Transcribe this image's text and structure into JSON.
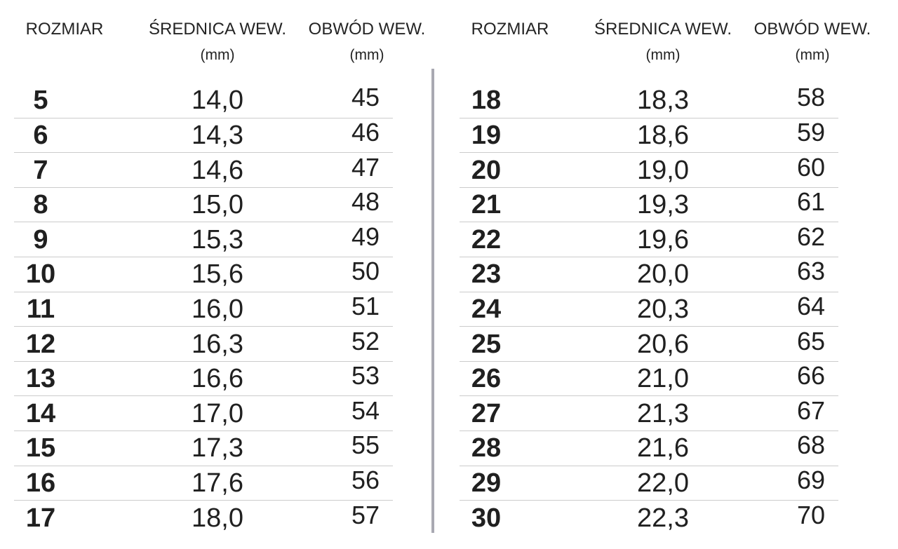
{
  "header": {
    "columns": [
      {
        "title": "ROZMIAR",
        "unit": ""
      },
      {
        "title": "ŚREDNICA WEW.",
        "unit": "(mm)"
      },
      {
        "title": "OBWÓD WEW.",
        "unit": "(mm)"
      }
    ]
  },
  "tables": [
    {
      "name": "sizes-5-17",
      "rows": [
        [
          "5",
          "14,0",
          "45"
        ],
        [
          "6",
          "14,3",
          "46"
        ],
        [
          "7",
          "14,6",
          "47"
        ],
        [
          "8",
          "15,0",
          "48"
        ],
        [
          "9",
          "15,3",
          "49"
        ],
        [
          "10",
          "15,6",
          "50"
        ],
        [
          "11",
          "16,0",
          "51"
        ],
        [
          "12",
          "16,3",
          "52"
        ],
        [
          "13",
          "16,6",
          "53"
        ],
        [
          "14",
          "17,0",
          "54"
        ],
        [
          "15",
          "17,3",
          "55"
        ],
        [
          "16",
          "17,6",
          "56"
        ],
        [
          "17",
          "18,0",
          "57"
        ]
      ]
    },
    {
      "name": "sizes-18-30",
      "rows": [
        [
          "18",
          "18,3",
          "58"
        ],
        [
          "19",
          "18,6",
          "59"
        ],
        [
          "20",
          "19,0",
          "60"
        ],
        [
          "21",
          "19,3",
          "61"
        ],
        [
          "22",
          "19,6",
          "62"
        ],
        [
          "23",
          "20,0",
          "63"
        ],
        [
          "24",
          "20,3",
          "64"
        ],
        [
          "25",
          "20,6",
          "65"
        ],
        [
          "26",
          "21,0",
          "66"
        ],
        [
          "27",
          "21,3",
          "67"
        ],
        [
          "28",
          "21,6",
          "68"
        ],
        [
          "29",
          "22,0",
          "69"
        ],
        [
          "30",
          "22,3",
          "70"
        ]
      ]
    }
  ],
  "colors": {
    "text": "#202020",
    "row_line": "#cbcbcb",
    "divider": "#a9a9b2",
    "background": "#ffffff"
  }
}
